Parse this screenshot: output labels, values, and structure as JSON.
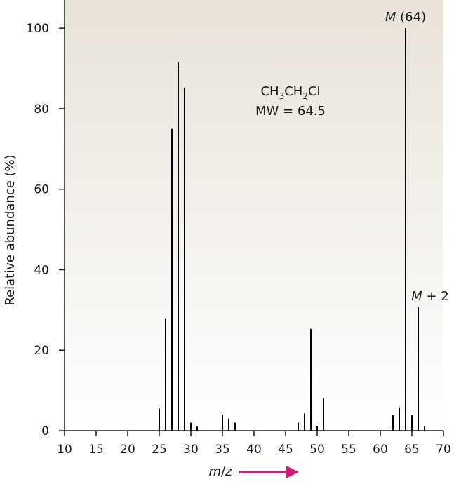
{
  "chart_data": {
    "type": "bar",
    "xlabel_parts": {
      "m": "m",
      "slash": "/",
      "z": "z"
    },
    "ylabel": "Relative abundance (%)",
    "xlim": [
      10,
      70
    ],
    "ylim": [
      0,
      107
    ],
    "xticks": [
      10,
      15,
      20,
      25,
      30,
      35,
      40,
      45,
      50,
      55,
      60,
      65,
      70
    ],
    "yticks": [
      0,
      20,
      40,
      60,
      80,
      100
    ],
    "points": [
      {
        "x": 25,
        "y": 5.5
      },
      {
        "x": 26,
        "y": 27.8
      },
      {
        "x": 27,
        "y": 75
      },
      {
        "x": 28,
        "y": 91.5
      },
      {
        "x": 29,
        "y": 85.2
      },
      {
        "x": 30,
        "y": 2
      },
      {
        "x": 31,
        "y": 1
      },
      {
        "x": 35,
        "y": 4
      },
      {
        "x": 36,
        "y": 3
      },
      {
        "x": 37,
        "y": 2
      },
      {
        "x": 47,
        "y": 2
      },
      {
        "x": 48,
        "y": 4.3
      },
      {
        "x": 49,
        "y": 25.3
      },
      {
        "x": 50,
        "y": 1.2
      },
      {
        "x": 51,
        "y": 8
      },
      {
        "x": 62,
        "y": 3.8
      },
      {
        "x": 63,
        "y": 5.8
      },
      {
        "x": 64,
        "y": 100
      },
      {
        "x": 65,
        "y": 3.8
      },
      {
        "x": 66,
        "y": 30.7
      },
      {
        "x": 67,
        "y": 1
      }
    ],
    "annotations": {
      "molecular_ion": {
        "italic": "M",
        "rest": " (64)",
        "x": 64,
        "y": 100
      },
      "m_plus_2": {
        "italic": "M",
        "rest": " + 2",
        "x": 66,
        "y": 30.7
      },
      "formula": {
        "p1": "CH",
        "s1": "3",
        "p2": "CH",
        "s2": "2",
        "p3": "Cl"
      },
      "mw": "MW = 64.5"
    },
    "colors": {
      "bar": "#000000",
      "axis": "#1a1a1a",
      "arrow": "#d4187a",
      "bg_top": "#e8e2d8",
      "bg_bottom": "#ffffff"
    }
  }
}
